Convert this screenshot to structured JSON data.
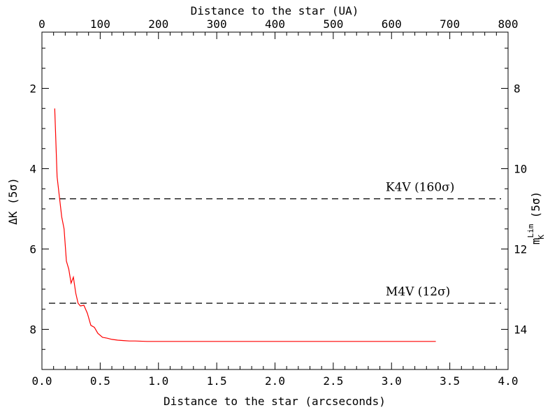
{
  "chart_data": {
    "type": "line",
    "colors": {
      "curve": "#ff0000",
      "axes": "#000000",
      "reference_lines": "#000000"
    },
    "x_bottom": {
      "label": "Distance to the star (arcseconds)",
      "range": [
        0.0,
        4.0
      ],
      "ticks": [
        0.0,
        0.5,
        1.0,
        1.5,
        2.0,
        2.5,
        3.0,
        3.5,
        4.0
      ],
      "tick_labels": [
        "0.0",
        "0.5",
        "1.0",
        "1.5",
        "2.0",
        "2.5",
        "3.0",
        "3.5",
        "4.0"
      ]
    },
    "x_top": {
      "label": "Distance to the star (UA)",
      "range": [
        0,
        800
      ],
      "ticks": [
        0,
        100,
        200,
        300,
        400,
        500,
        600,
        700,
        800
      ],
      "tick_labels": [
        "0",
        "100",
        "200",
        "300",
        "400",
        "500",
        "600",
        "700",
        "800"
      ]
    },
    "y_left": {
      "label": "ΔK (5σ)",
      "range": [
        9.0,
        0.6
      ],
      "ticks": [
        2,
        4,
        6,
        8
      ],
      "tick_labels": [
        "2",
        "4",
        "6",
        "8"
      ],
      "inverted": true
    },
    "y_right": {
      "label_main": "m",
      "label_sup": "Lim",
      "label_sub": "K",
      "label_tail": " (5σ)",
      "range": [
        15.0,
        6.6
      ],
      "ticks": [
        8,
        10,
        12,
        14
      ],
      "tick_labels": [
        "8",
        "10",
        "12",
        "14"
      ],
      "inverted": true
    },
    "series": [
      {
        "color": "#ff0000",
        "x": [
          0.11,
          0.13,
          0.15,
          0.17,
          0.19,
          0.21,
          0.23,
          0.25,
          0.27,
          0.29,
          0.31,
          0.33,
          0.36,
          0.39,
          0.42,
          0.45,
          0.48,
          0.52,
          0.56,
          0.6,
          0.65,
          0.7,
          0.75,
          0.8,
          0.9,
          1.0,
          1.2,
          1.5,
          2.0,
          2.5,
          3.0,
          3.38
        ],
        "y": [
          2.5,
          4.2,
          4.7,
          5.2,
          5.5,
          6.3,
          6.5,
          6.85,
          6.7,
          7.1,
          7.35,
          7.42,
          7.4,
          7.6,
          7.9,
          7.95,
          8.1,
          8.2,
          8.22,
          8.25,
          8.27,
          8.28,
          8.29,
          8.29,
          8.3,
          8.3,
          8.3,
          8.3,
          8.3,
          8.3,
          8.3,
          8.3
        ]
      }
    ],
    "reference_lines": [
      {
        "label": "K4V (160σ)",
        "y": 4.75,
        "label_x": 2.95
      },
      {
        "label": "M4V (12σ)",
        "y": 7.35,
        "label_x": 2.95
      }
    ]
  }
}
